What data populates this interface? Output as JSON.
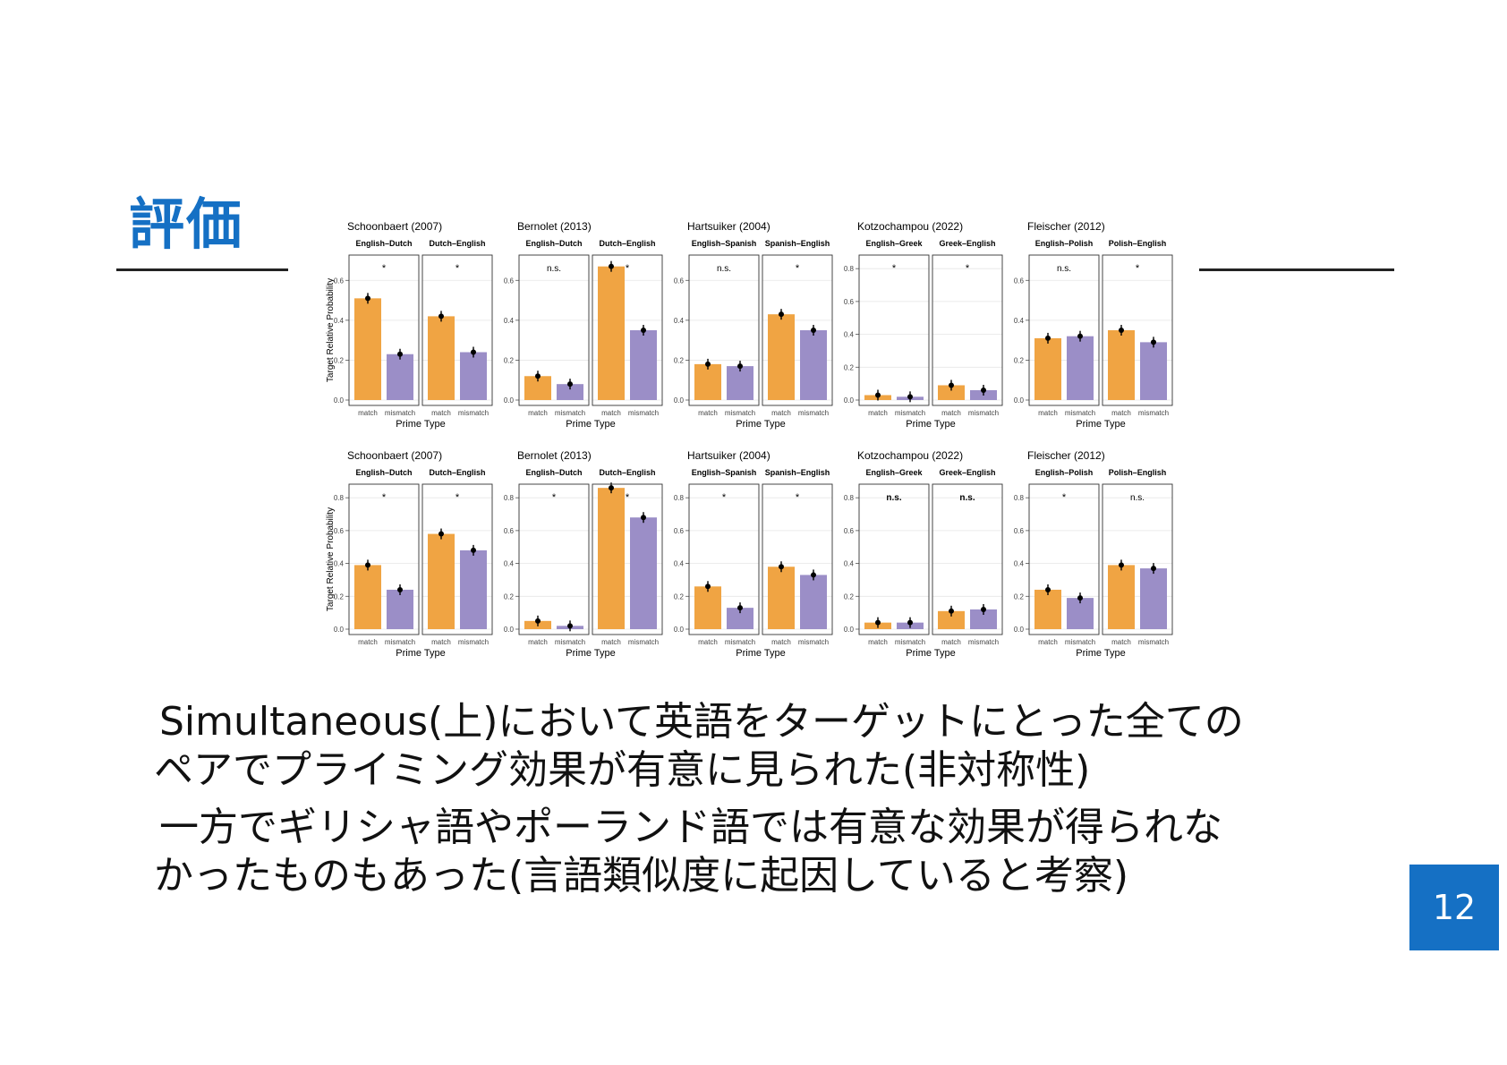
{
  "slide": {
    "title": "評価",
    "page_number": "12",
    "para1_line1": "Simultaneous(上)において英語をターゲットにとった全ての",
    "para1_line2": "ペアでプライミング効果が有意に見られた(非対称性)",
    "para2_line1": "一方でギリシャ語やポーランド語では有意な効果が得られな",
    "para2_line2": "かったものもあった(言語類似度に起因していると考察)"
  },
  "colors": {
    "match": "#f0a443",
    "mismatch": "#9b8ec7",
    "accent": "#1570c4"
  },
  "chart_data": [
    {
      "type": "bar",
      "row": "top",
      "ylabel": "Target Relative Probability",
      "xlabel": "Prime Type",
      "categories": [
        "match",
        "mismatch"
      ],
      "studies": [
        {
          "title": "Schoonbaert (2007)",
          "ylim": [
            0,
            0.7
          ],
          "ticks": [
            0.0,
            0.2,
            0.4,
            0.6
          ],
          "tick_labels": [
            "0.0",
            "0.2",
            "0.4",
            "0.6"
          ],
          "panels": [
            {
              "label": "English–Dutch",
              "values": [
                0.51,
                0.23
              ],
              "sig": "*"
            },
            {
              "label": "Dutch–English",
              "values": [
                0.42,
                0.24
              ],
              "sig": "*"
            }
          ]
        },
        {
          "title": "Bernolet (2013)",
          "ylim": [
            0,
            0.7
          ],
          "ticks": [
            0.0,
            0.2,
            0.4,
            0.6
          ],
          "tick_labels": [
            "0.0",
            "0.2",
            "0.4",
            "0.6"
          ],
          "panels": [
            {
              "label": "English–Dutch",
              "values": [
                0.12,
                0.08
              ],
              "sig": "n.s."
            },
            {
              "label": "Dutch–English",
              "values": [
                0.67,
                0.35
              ],
              "sig": "*"
            }
          ]
        },
        {
          "title": "Hartsuiker (2004)",
          "ylim": [
            0,
            0.7
          ],
          "ticks": [
            0.0,
            0.2,
            0.4,
            0.6
          ],
          "tick_labels": [
            "0.0",
            "0.2",
            "0.4",
            "0.6"
          ],
          "panels": [
            {
              "label": "English–Spanish",
              "values": [
                0.18,
                0.17
              ],
              "sig": "n.s."
            },
            {
              "label": "Spanish–English",
              "values": [
                0.43,
                0.35
              ],
              "sig": "*"
            }
          ]
        },
        {
          "title": "Kotzochampou (2022)",
          "ylim": [
            0,
            0.85
          ],
          "ticks": [
            0.0,
            0.2,
            0.4,
            0.6,
            0.8
          ],
          "tick_labels": [
            "0.0",
            "0.2",
            "0.4",
            "0.6",
            "0.8"
          ],
          "panels": [
            {
              "label": "English–Greek",
              "values": [
                0.03,
                0.02
              ],
              "sig": "*"
            },
            {
              "label": "Greek–English",
              "values": [
                0.09,
                0.06
              ],
              "sig": "*"
            }
          ]
        },
        {
          "title": "Fleischer (2012)",
          "ylim": [
            0,
            0.7
          ],
          "ticks": [
            0.0,
            0.2,
            0.4,
            0.6
          ],
          "tick_labels": [
            "0.0",
            "0.2",
            "0.4",
            "0.6"
          ],
          "panels": [
            {
              "label": "English–Polish",
              "values": [
                0.31,
                0.32
              ],
              "sig": "n.s."
            },
            {
              "label": "Polish–English",
              "values": [
                0.35,
                0.29
              ],
              "sig": "*"
            }
          ]
        }
      ]
    },
    {
      "type": "bar",
      "row": "bottom",
      "ylabel": "Target Relative Probability",
      "xlabel": "Prime Type",
      "categories": [
        "match",
        "mismatch"
      ],
      "studies": [
        {
          "title": "Schoonbaert (2007)",
          "ylim": [
            0,
            0.85
          ],
          "ticks": [
            0.0,
            0.2,
            0.4,
            0.6,
            0.8
          ],
          "tick_labels": [
            "0.0",
            "0.2",
            "0.4",
            "0.6",
            "0.8"
          ],
          "panels": [
            {
              "label": "English–Dutch",
              "values": [
                0.39,
                0.24
              ],
              "sig": "*"
            },
            {
              "label": "Dutch–English",
              "values": [
                0.58,
                0.48
              ],
              "sig": "*"
            }
          ]
        },
        {
          "title": "Bernolet (2013)",
          "ylim": [
            0,
            0.85
          ],
          "ticks": [
            0.0,
            0.2,
            0.4,
            0.6,
            0.8
          ],
          "tick_labels": [
            "0.0",
            "0.2",
            "0.4",
            "0.6",
            "0.8"
          ],
          "panels": [
            {
              "label": "English–Dutch",
              "values": [
                0.05,
                0.02
              ],
              "sig": "*"
            },
            {
              "label": "Dutch–English",
              "values": [
                0.86,
                0.68
              ],
              "sig": "*"
            }
          ]
        },
        {
          "title": "Hartsuiker (2004)",
          "ylim": [
            0,
            0.85
          ],
          "ticks": [
            0.0,
            0.2,
            0.4,
            0.6,
            0.8
          ],
          "tick_labels": [
            "0.0",
            "0.2",
            "0.4",
            "0.6",
            "0.8"
          ],
          "panels": [
            {
              "label": "English–Spanish",
              "values": [
                0.26,
                0.13
              ],
              "sig": "*"
            },
            {
              "label": "Spanish–English",
              "values": [
                0.38,
                0.33
              ],
              "sig": "*"
            }
          ]
        },
        {
          "title": "Kotzochampou (2022)",
          "ylim": [
            0,
            0.85
          ],
          "ticks": [
            0.0,
            0.2,
            0.4,
            0.6,
            0.8
          ],
          "tick_labels": [
            "0.0",
            "0.2",
            "0.4",
            "0.6",
            "0.8"
          ],
          "panels": [
            {
              "label": "English–Greek",
              "values": [
                0.04,
                0.04
              ],
              "sig": "n.s."
            },
            {
              "label": "Greek–English",
              "values": [
                0.11,
                0.12
              ],
              "sig": "n.s."
            }
          ]
        },
        {
          "title": "Fleischer (2012)",
          "ylim": [
            0,
            0.85
          ],
          "ticks": [
            0.0,
            0.2,
            0.4,
            0.6,
            0.8
          ],
          "tick_labels": [
            "0.0",
            "0.2",
            "0.4",
            "0.6",
            "0.8"
          ],
          "panels": [
            {
              "label": "English–Polish",
              "values": [
                0.24,
                0.19
              ],
              "sig": "*"
            },
            {
              "label": "Polish–English",
              "values": [
                0.39,
                0.37
              ],
              "sig": "n.s."
            }
          ]
        }
      ]
    }
  ]
}
